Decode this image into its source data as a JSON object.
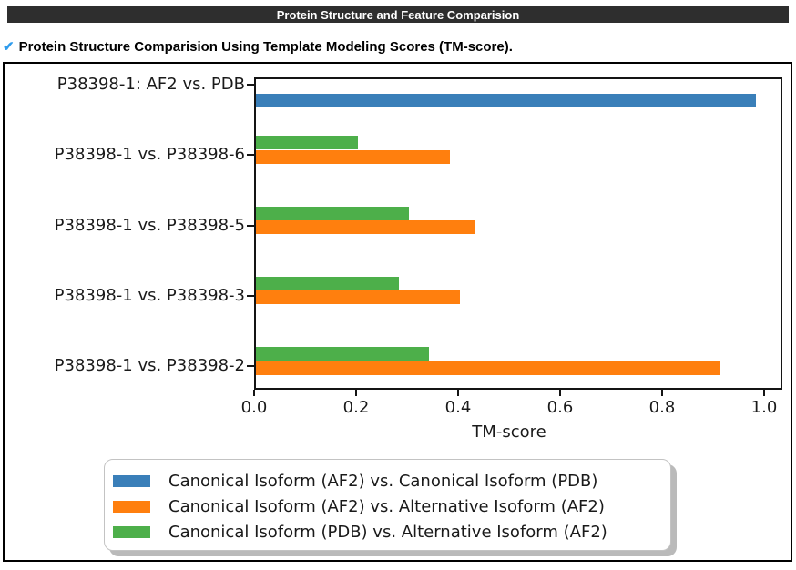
{
  "header": {
    "title": "Protein Structure and Feature Comparision",
    "bg_color": "#2e2e2e",
    "text_color": "#ffffff"
  },
  "subtitle": {
    "check_icon": "✔",
    "check_color": "#2f9ced",
    "text": "Protein Structure Comparision Using Template Modeling Scores (TM-score)."
  },
  "chart_data": {
    "type": "bar",
    "orientation": "horizontal",
    "title": "",
    "xlabel": "TM-score",
    "ylabel": "",
    "xlim": [
      0.0,
      1.0
    ],
    "xticks": [
      "0.0",
      "0.2",
      "0.4",
      "0.6",
      "0.8",
      "1.0"
    ],
    "xtick_values": [
      0.0,
      0.2,
      0.4,
      0.6,
      0.8,
      1.0
    ],
    "grid": false,
    "legend_position": "below-plot",
    "categories": [
      "P38398-1: AF2 vs. PDB",
      "P38398-1 vs. P38398-6",
      "P38398-1 vs. P38398-5",
      "P38398-1 vs. P38398-3",
      "P38398-1 vs. P38398-2"
    ],
    "series": [
      {
        "name": "Canonical Isoform (AF2) vs. Canonical Isoform (PDB)",
        "color": "#3a7fb9",
        "values": [
          0.98,
          null,
          null,
          null,
          null
        ]
      },
      {
        "name": "Canonical Isoform (AF2) vs. Alternative Isoform (AF2)",
        "color": "#ff7f0e",
        "values": [
          null,
          0.38,
          0.43,
          0.4,
          0.91
        ]
      },
      {
        "name": "Canonical Isoform (PDB) vs. Alternative Isoform (AF2)",
        "color": "#4daf4a",
        "values": [
          null,
          0.2,
          0.3,
          0.28,
          0.34
        ]
      }
    ]
  }
}
